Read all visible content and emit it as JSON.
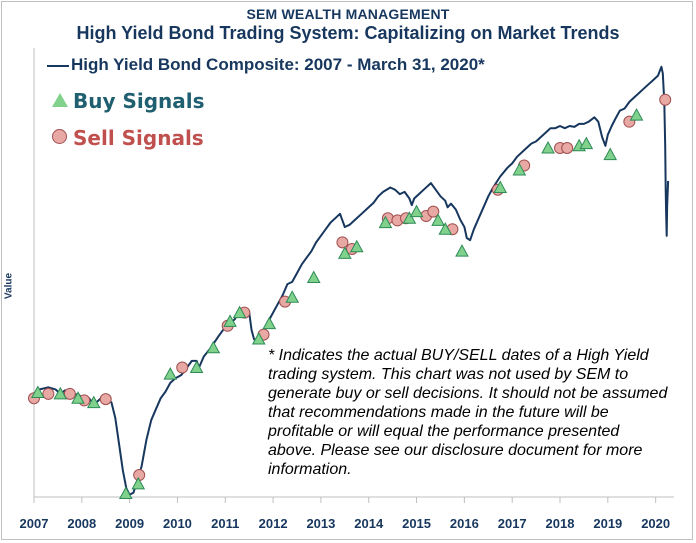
{
  "header": {
    "company": "SEM WEALTH MANAGEMENT",
    "title": "High Yield Bond Trading System: Capitalizing on Market Trends"
  },
  "legend": {
    "series_label": "High Yield Bond Composite: 2007 - March 31, 2020*",
    "buy_label": "Buy Signals",
    "sell_label": "Sell Signals"
  },
  "note": "* Indicates the actual BUY/SELL dates of a High Yield trading system.  This chart was not used by SEM to generate buy or sell decisions.  It should not be assumed that recommendations made in the future will be profitable or will equal the performance presented above.  Please see our disclosure document for more information.",
  "colors": {
    "line": "#17375e",
    "buy_fill": "#7fd18b",
    "buy_stroke": "#2e8b57",
    "sell_fill": "#e8a8a4",
    "sell_stroke": "#a05050"
  },
  "chart_data": {
    "type": "line",
    "title": "High Yield Bond Trading System: Capitalizing on Market Trends",
    "xlabel": "",
    "ylabel": "Value",
    "xlim": [
      2007.0,
      2020.3
    ],
    "ylim": [
      0,
      100
    ],
    "x_ticks": [
      "2007",
      "2008",
      "2009",
      "2010",
      "2011",
      "2012",
      "2013",
      "2014",
      "2015",
      "2016",
      "2017",
      "2018",
      "2019",
      "2020"
    ],
    "series": [
      {
        "name": "High Yield Bond Composite: 2007 - March 31, 2020*",
        "points": [
          [
            2007.0,
            23.5
          ],
          [
            2007.12,
            24.5
          ],
          [
            2007.3,
            25.0
          ],
          [
            2007.45,
            24.5
          ],
          [
            2007.55,
            23.5
          ],
          [
            2007.65,
            24.3
          ],
          [
            2007.8,
            23.0
          ],
          [
            2007.92,
            23.5
          ],
          [
            2008.05,
            22.0
          ],
          [
            2008.15,
            22.5
          ],
          [
            2008.25,
            21.0
          ],
          [
            2008.35,
            22.0
          ],
          [
            2008.45,
            23.0
          ],
          [
            2008.55,
            22.3
          ],
          [
            2008.62,
            21.5
          ],
          [
            2008.7,
            18.0
          ],
          [
            2008.78,
            12.0
          ],
          [
            2008.86,
            6.0
          ],
          [
            2008.93,
            2.0
          ],
          [
            2009.0,
            0.5
          ],
          [
            2009.08,
            1.0
          ],
          [
            2009.15,
            3.5
          ],
          [
            2009.25,
            7.0
          ],
          [
            2009.35,
            13.0
          ],
          [
            2009.45,
            17.5
          ],
          [
            2009.55,
            20.0
          ],
          [
            2009.65,
            22.5
          ],
          [
            2009.75,
            24.0
          ],
          [
            2009.85,
            26.0
          ],
          [
            2009.95,
            27.0
          ],
          [
            2010.08,
            27.8
          ],
          [
            2010.2,
            29.5
          ],
          [
            2010.3,
            31.0
          ],
          [
            2010.4,
            31.0
          ],
          [
            2010.45,
            29.5
          ],
          [
            2010.55,
            32.0
          ],
          [
            2010.7,
            34.0
          ],
          [
            2010.85,
            36.5
          ],
          [
            2010.95,
            38.0
          ],
          [
            2011.1,
            39.5
          ],
          [
            2011.2,
            40.5
          ],
          [
            2011.3,
            42.5
          ],
          [
            2011.4,
            43.0
          ],
          [
            2011.5,
            42.0
          ],
          [
            2011.55,
            38.0
          ],
          [
            2011.6,
            36.0
          ],
          [
            2011.68,
            35.0
          ],
          [
            2011.75,
            36.5
          ],
          [
            2011.85,
            38.5
          ],
          [
            2011.95,
            41.0
          ],
          [
            2012.1,
            44.0
          ],
          [
            2012.2,
            46.0
          ],
          [
            2012.3,
            48.5
          ],
          [
            2012.4,
            49.0
          ],
          [
            2012.5,
            51.0
          ],
          [
            2012.6,
            53.0
          ],
          [
            2012.7,
            54.5
          ],
          [
            2012.8,
            56.0
          ],
          [
            2012.9,
            58.0
          ],
          [
            2013.0,
            59.5
          ],
          [
            2013.1,
            61.0
          ],
          [
            2013.2,
            62.5
          ],
          [
            2013.3,
            63.5
          ],
          [
            2013.4,
            64.5
          ],
          [
            2013.45,
            63.0
          ],
          [
            2013.5,
            61.5
          ],
          [
            2013.6,
            62.0
          ],
          [
            2013.7,
            63.0
          ],
          [
            2013.85,
            64.5
          ],
          [
            2014.0,
            66.0
          ],
          [
            2014.1,
            67.0
          ],
          [
            2014.2,
            68.5
          ],
          [
            2014.3,
            69.5
          ],
          [
            2014.45,
            70.5
          ],
          [
            2014.55,
            70.0
          ],
          [
            2014.65,
            69.0
          ],
          [
            2014.75,
            69.5
          ],
          [
            2014.85,
            68.0
          ],
          [
            2014.9,
            66.5
          ],
          [
            2014.95,
            68.0
          ],
          [
            2015.05,
            69.0
          ],
          [
            2015.15,
            70.0
          ],
          [
            2015.3,
            71.5
          ],
          [
            2015.4,
            70.0
          ],
          [
            2015.5,
            68.5
          ],
          [
            2015.6,
            67.5
          ],
          [
            2015.65,
            66.0
          ],
          [
            2015.72,
            66.8
          ],
          [
            2015.82,
            65.5
          ],
          [
            2015.92,
            63.0
          ],
          [
            2016.0,
            61.5
          ],
          [
            2016.05,
            59.0
          ],
          [
            2016.12,
            58.5
          ],
          [
            2016.2,
            61.0
          ],
          [
            2016.3,
            63.5
          ],
          [
            2016.4,
            66.0
          ],
          [
            2016.5,
            68.5
          ],
          [
            2016.6,
            70.5
          ],
          [
            2016.75,
            73.0
          ],
          [
            2016.9,
            75.0
          ],
          [
            2017.0,
            76.0
          ],
          [
            2017.1,
            77.5
          ],
          [
            2017.2,
            78.5
          ],
          [
            2017.3,
            79.5
          ],
          [
            2017.4,
            80.5
          ],
          [
            2017.5,
            81.0
          ],
          [
            2017.6,
            82.0
          ],
          [
            2017.7,
            83.0
          ],
          [
            2017.8,
            84.0
          ],
          [
            2017.9,
            84.0
          ],
          [
            2018.0,
            84.5
          ],
          [
            2018.1,
            84.0
          ],
          [
            2018.2,
            84.5
          ],
          [
            2018.3,
            84.3
          ],
          [
            2018.4,
            85.0
          ],
          [
            2018.5,
            85.0
          ],
          [
            2018.6,
            85.5
          ],
          [
            2018.72,
            86.5
          ],
          [
            2018.8,
            85.5
          ],
          [
            2018.88,
            82.0
          ],
          [
            2018.95,
            80.0
          ],
          [
            2019.0,
            82.5
          ],
          [
            2019.08,
            84.5
          ],
          [
            2019.15,
            86.0
          ],
          [
            2019.25,
            88.0
          ],
          [
            2019.35,
            88.5
          ],
          [
            2019.45,
            90.0
          ],
          [
            2019.55,
            91.0
          ],
          [
            2019.65,
            92.0
          ],
          [
            2019.75,
            93.0
          ],
          [
            2019.85,
            94.0
          ],
          [
            2019.95,
            95.0
          ],
          [
            2020.05,
            96.0
          ],
          [
            2020.12,
            98.0
          ],
          [
            2020.15,
            96.5
          ],
          [
            2020.18,
            90.0
          ],
          [
            2020.2,
            80.0
          ],
          [
            2020.21,
            70.0
          ],
          [
            2020.22,
            64.0
          ],
          [
            2020.23,
            59.5
          ],
          [
            2020.24,
            66.0
          ],
          [
            2020.26,
            72.0
          ]
        ]
      }
    ],
    "buy_signals": [
      [
        2007.08,
        23.8
      ],
      [
        2007.55,
        23.5
      ],
      [
        2007.92,
        22.5
      ],
      [
        2008.25,
        21.5
      ],
      [
        2008.92,
        0.8
      ],
      [
        2009.18,
        3.0
      ],
      [
        2009.85,
        28.0
      ],
      [
        2010.4,
        29.5
      ],
      [
        2010.75,
        34.0
      ],
      [
        2011.1,
        40.0
      ],
      [
        2011.3,
        42.0
      ],
      [
        2011.7,
        36.0
      ],
      [
        2011.92,
        39.5
      ],
      [
        2012.4,
        45.5
      ],
      [
        2012.85,
        50.0
      ],
      [
        2013.5,
        55.5
      ],
      [
        2013.75,
        57.0
      ],
      [
        2014.35,
        62.5
      ],
      [
        2014.85,
        63.5
      ],
      [
        2015.0,
        65.0
      ],
      [
        2015.45,
        63.0
      ],
      [
        2015.6,
        61.0
      ],
      [
        2015.95,
        56.0
      ],
      [
        2016.75,
        70.5
      ],
      [
        2017.15,
        74.5
      ],
      [
        2017.75,
        79.5
      ],
      [
        2018.4,
        80.0
      ],
      [
        2018.55,
        80.5
      ],
      [
        2019.05,
        78.0
      ],
      [
        2019.6,
        87.0
      ]
    ],
    "sell_signals": [
      [
        2007.0,
        22.5
      ],
      [
        2007.3,
        23.5
      ],
      [
        2007.75,
        23.5
      ],
      [
        2008.05,
        22.0
      ],
      [
        2008.5,
        22.3
      ],
      [
        2009.2,
        5.0
      ],
      [
        2010.1,
        29.5
      ],
      [
        2011.05,
        39.0
      ],
      [
        2011.4,
        42.0
      ],
      [
        2011.8,
        37.0
      ],
      [
        2012.25,
        44.5
      ],
      [
        2013.45,
        58.0
      ],
      [
        2013.65,
        56.5
      ],
      [
        2014.4,
        63.5
      ],
      [
        2014.6,
        63.0
      ],
      [
        2014.78,
        63.5
      ],
      [
        2015.2,
        64.0
      ],
      [
        2015.35,
        65.0
      ],
      [
        2015.75,
        61.0
      ],
      [
        2016.7,
        70.0
      ],
      [
        2017.25,
        75.5
      ],
      [
        2018.0,
        79.5
      ],
      [
        2018.15,
        79.5
      ],
      [
        2019.45,
        85.5
      ],
      [
        2020.2,
        90.5
      ]
    ]
  }
}
